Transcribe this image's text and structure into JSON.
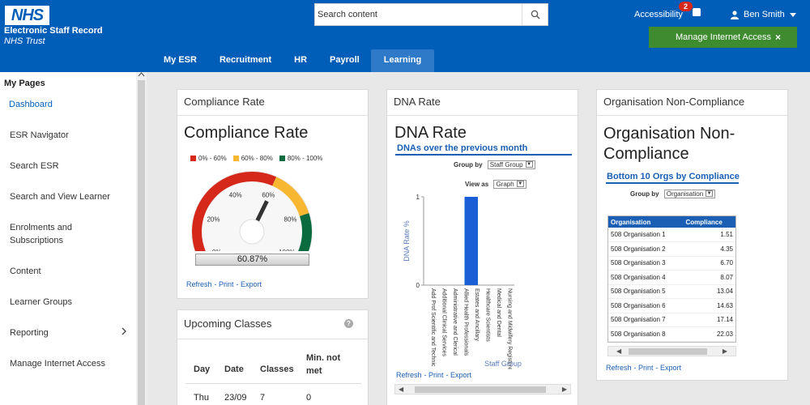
{
  "header": {
    "logo": "NHS",
    "app_title": "Electronic Staff Record",
    "app_subtitle": "NHS Trust",
    "search_placeholder": "Search content",
    "accessibility": "Accessibility",
    "notification_count": "2",
    "user_name": "Ben Smith",
    "banner_text": "Manage Internet Access",
    "banner_close": "×",
    "brand_color": "#005eb8",
    "banner_color": "#3f8b2f"
  },
  "nav": {
    "tabs": [
      {
        "label": "My ESR"
      },
      {
        "label": "Recruitment"
      },
      {
        "label": "HR"
      },
      {
        "label": "Payroll"
      },
      {
        "label": "Learning",
        "active": true
      }
    ]
  },
  "sidebar": {
    "title": "My Pages",
    "items": [
      {
        "label": "Dashboard",
        "active": true
      },
      {
        "label": "ESR Navigator"
      },
      {
        "label": "Search ESR"
      },
      {
        "label": "Search and View Learner"
      },
      {
        "label": "Enrolments and Subscriptions"
      },
      {
        "label": "Content"
      },
      {
        "label": "Learner Groups"
      },
      {
        "label": "Reporting",
        "has_submenu": true
      },
      {
        "label": "Manage Internet Access"
      }
    ]
  },
  "compliance": {
    "card_title": "Compliance Rate",
    "big_title": "Compliance Rate",
    "legend": [
      {
        "label": "0% - 60%",
        "color": "#d5281b"
      },
      {
        "label": "60% - 80%",
        "color": "#f7b731"
      },
      {
        "label": "80% - 100%",
        "color": "#0a6b3f"
      }
    ],
    "ticks": [
      "0%",
      "20%",
      "40%",
      "60%",
      "80%",
      "100%"
    ],
    "value_percent": 60.87,
    "value_label": "60.87%",
    "links": [
      "Refresh",
      "- Print",
      "- Export"
    ]
  },
  "upcoming": {
    "card_title": "Upcoming Classes",
    "help_icon": "?",
    "columns": [
      "Day",
      "Date",
      "Classes",
      "Min. not met"
    ],
    "rows": [
      [
        "Thu",
        "23/09",
        "7",
        "0"
      ]
    ]
  },
  "dna": {
    "card_title": "DNA Rate",
    "big_title": "DNA Rate",
    "subheading": "DNAs over the previous month",
    "group_by_label": "Group by",
    "group_by_value": "Staff Group",
    "view_as_label": "View as",
    "view_as_value": "Graph",
    "links": [
      "Refresh",
      "- Print",
      "- Export"
    ]
  },
  "chart_data": {
    "type": "bar",
    "title": "",
    "xlabel": "Staff Group",
    "ylabel": "DNA Rate %",
    "ylim": [
      0,
      1
    ],
    "y_ticks": [
      "0",
      "1"
    ],
    "categories": [
      "Add Prof Scientific and Technic",
      "Additional Clinical Services",
      "Administrative and Clerical",
      "Allied Health Professionals",
      "Estates and Ancillary",
      "Healthcare Scientists",
      "Medical and Dental",
      "Nursing and Midwifery Registered"
    ],
    "values": [
      0,
      0,
      0,
      1,
      0,
      0,
      0,
      0
    ],
    "bar_color": "#1a5fd6",
    "grid": false
  },
  "org": {
    "card_title": "Organisation Non-Compliance",
    "big_title_line1": "Organisation Non-",
    "big_title_line2": "Compliance",
    "subheading": "Bottom 10 Orgs by Compliance",
    "group_by_label": "Group by",
    "group_by_value": "Organisation",
    "columns": [
      "Organisation",
      "Compliance"
    ],
    "rows": [
      [
        "508 Organisation 1",
        "1.51"
      ],
      [
        "508 Organisation 2",
        "4.35"
      ],
      [
        "508 Organisation 3",
        "6.70"
      ],
      [
        "508 Organisation 4",
        "8.07"
      ],
      [
        "508 Organisation 5",
        "13.04"
      ],
      [
        "508 Organisation 6",
        "14.63"
      ],
      [
        "508 Organisation 7",
        "17.14"
      ],
      [
        "508 Organisation 8",
        "22.03"
      ]
    ],
    "links": [
      "Refresh",
      "- Print",
      "- Export"
    ]
  }
}
